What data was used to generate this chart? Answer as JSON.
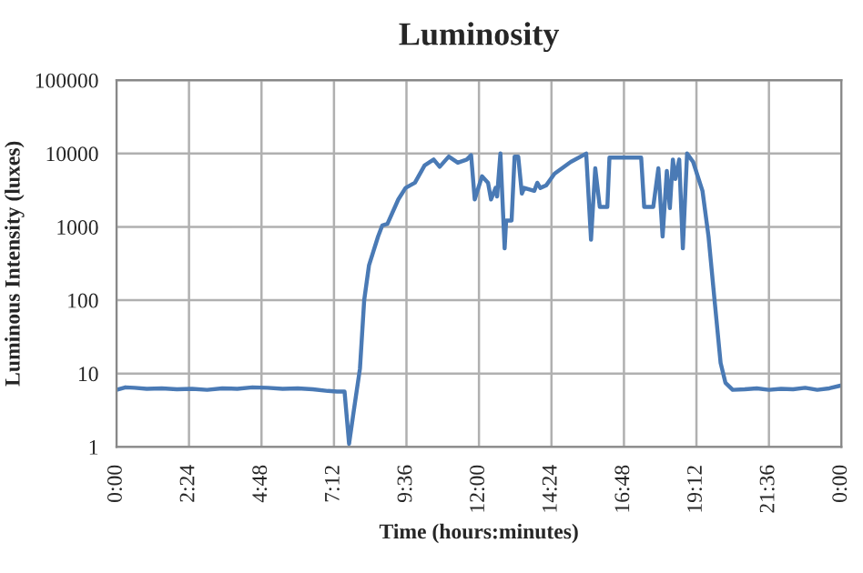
{
  "chart_data": {
    "type": "line",
    "title": "Luminosity",
    "xlabel": "Time (hours:minutes)",
    "ylabel": "Luminous Intensity (luxes)",
    "log": "y",
    "grid": true,
    "marker": "none",
    "line_style": "solid",
    "xlim": [
      0,
      24
    ],
    "ylim": [
      1,
      100000
    ],
    "xticks": [
      {
        "value": 0,
        "label": "0:00"
      },
      {
        "value": 2.4,
        "label": "2:24"
      },
      {
        "value": 4.8,
        "label": "4:48"
      },
      {
        "value": 7.2,
        "label": "7:12"
      },
      {
        "value": 9.6,
        "label": "9:36"
      },
      {
        "value": 12,
        "label": "12:00"
      },
      {
        "value": 14.4,
        "label": "14:24"
      },
      {
        "value": 16.8,
        "label": "16:48"
      },
      {
        "value": 19.2,
        "label": "19:12"
      },
      {
        "value": 21.6,
        "label": "21:36"
      },
      {
        "value": 24,
        "label": "0:00"
      }
    ],
    "yticks": [
      1,
      10,
      100,
      1000,
      10000,
      100000
    ],
    "series": [
      {
        "color": "#4a7ab5",
        "x": [
          0,
          0.3,
          0.6,
          1.0,
          1.5,
          2.0,
          2.5,
          3.0,
          3.5,
          4.0,
          4.5,
          5.0,
          5.5,
          6.0,
          6.5,
          7.0,
          7.3,
          7.55,
          7.7,
          7.85,
          8.06,
          8.2,
          8.36,
          8.66,
          8.8,
          8.97,
          9.33,
          9.57,
          9.88,
          10.2,
          10.5,
          10.7,
          11.0,
          11.3,
          11.6,
          11.74,
          11.86,
          12.1,
          12.3,
          12.4,
          12.55,
          12.6,
          12.71,
          12.85,
          12.9,
          13.08,
          13.18,
          13.3,
          13.42,
          13.5,
          13.83,
          13.93,
          14.03,
          14.23,
          14.5,
          15.04,
          15.55,
          15.71,
          15.85,
          16.0,
          16.25,
          16.32,
          17.37,
          17.47,
          17.77,
          17.94,
          18.08,
          18.22,
          18.32,
          18.42,
          18.5,
          18.63,
          18.75,
          18.89,
          19.09,
          19.4,
          19.6,
          19.8,
          20.0,
          20.16,
          20.4,
          20.8,
          21.2,
          21.6,
          22.0,
          22.4,
          22.8,
          23.2,
          23.6,
          24
        ],
        "values": [
          6.0,
          6.5,
          6.4,
          6.2,
          6.3,
          6.1,
          6.2,
          6.0,
          6.3,
          6.2,
          6.5,
          6.4,
          6.2,
          6.3,
          6.1,
          5.8,
          5.7,
          5.7,
          1.1,
          3,
          11.7,
          100,
          300,
          740,
          1050,
          1100,
          2370,
          3400,
          4000,
          6900,
          8300,
          6600,
          9100,
          7500,
          8300,
          9500,
          2370,
          4900,
          4000,
          2370,
          3400,
          2600,
          10000,
          510,
          1220,
          1220,
          9100,
          9100,
          2850,
          3400,
          3100,
          4000,
          3400,
          3700,
          5300,
          7700,
          10000,
          670,
          6300,
          1870,
          1870,
          8800,
          8800,
          1870,
          1870,
          6300,
          740,
          5800,
          1800,
          8300,
          4500,
          8300,
          510,
          10000,
          7700,
          3100,
          740,
          100,
          14,
          7.5,
          6.0,
          6.1,
          6.3,
          6.0,
          6.2,
          6.1,
          6.4,
          6.0,
          6.3,
          6.9
        ]
      }
    ]
  }
}
